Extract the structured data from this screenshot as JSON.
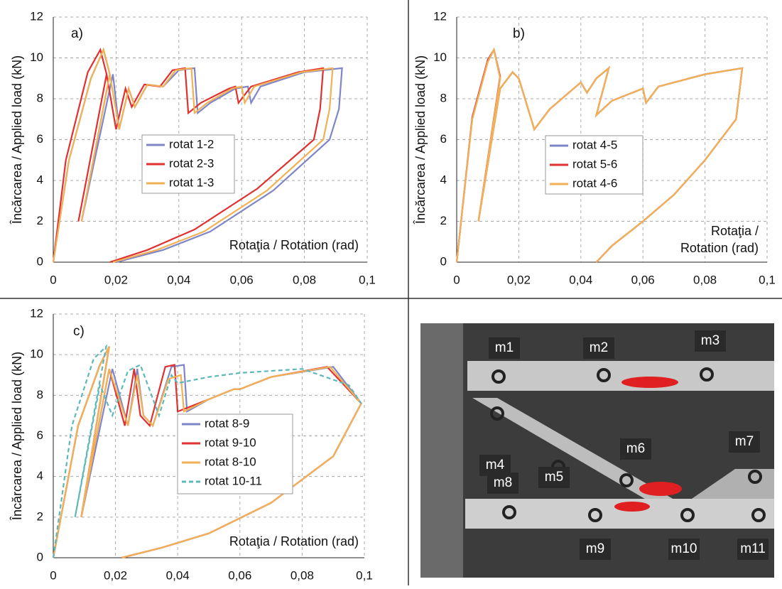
{
  "chart_data": [
    {
      "type": "line",
      "panel_label": "a)",
      "ylabel": "Încărcarea / Applied load (kN)",
      "xlabel": [
        "Rotaţia / Rotation (rad)"
      ],
      "xlim": [
        0,
        0.1
      ],
      "ylim": [
        0,
        12
      ],
      "xticks": [
        0,
        {
          "value": 0.02,
          "label": "0,02"
        },
        {
          "value": 0.04,
          "label": "0,04"
        },
        {
          "value": 0.06,
          "label": "0,06"
        },
        {
          "value": 0.08,
          "label": "0,08"
        },
        {
          "value": 0.1,
          "label": "0,1"
        }
      ],
      "yticks": [
        0,
        2,
        4,
        6,
        8,
        10,
        12
      ],
      "grid": true,
      "series": [
        {
          "name": "rotat 1-2",
          "color": "#7e86c8",
          "x": [
            0,
            0.005,
            0.012,
            0.016,
            0.018,
            0.009,
            0.019,
            0.021,
            0.024,
            0.026,
            0.03,
            0.035,
            0.04,
            0.045,
            0.046,
            0.05,
            0.058,
            0.062,
            0.063,
            0.066,
            0.08,
            0.092,
            0.091,
            0.088,
            0.07,
            0.05,
            0.035,
            0.02
          ],
          "values": [
            0,
            5,
            9,
            10.4,
            9.2,
            2,
            9.2,
            6.5,
            8.5,
            7.6,
            8.7,
            8.6,
            9.4,
            9.5,
            7.3,
            7.8,
            8.5,
            8.6,
            7.8,
            8.6,
            9.3,
            9.5,
            7.5,
            6,
            3.5,
            1.5,
            0.6,
            0
          ]
        },
        {
          "name": "rotat 2-3",
          "color": "#e03030",
          "x": [
            0,
            0.004,
            0.011,
            0.015,
            0.017,
            0.008,
            0.017,
            0.02,
            0.023,
            0.025,
            0.029,
            0.034,
            0.038,
            0.042,
            0.043,
            0.047,
            0.056,
            0.058,
            0.059,
            0.063,
            0.078,
            0.086,
            0.085,
            0.083,
            0.065,
            0.045,
            0.03,
            0.018
          ],
          "values": [
            0,
            5,
            9.3,
            10.4,
            9.2,
            2,
            9.2,
            6.5,
            8.5,
            7.6,
            8.7,
            8.6,
            9.4,
            9.5,
            7.3,
            7.8,
            8.5,
            8.6,
            7.8,
            8.6,
            9.3,
            9.5,
            7.5,
            6,
            3.6,
            1.6,
            0.6,
            0
          ]
        },
        {
          "name": "rotat 1-3",
          "color": "#f2b154",
          "x": [
            0,
            0.005,
            0.012,
            0.016,
            0.018,
            0.009,
            0.018,
            0.021,
            0.024,
            0.026,
            0.03,
            0.035,
            0.039,
            0.044,
            0.045,
            0.049,
            0.057,
            0.06,
            0.061,
            0.064,
            0.079,
            0.089,
            0.088,
            0.086,
            0.068,
            0.048,
            0.033,
            0.019
          ],
          "values": [
            0,
            5,
            9,
            10.4,
            9.2,
            2,
            9.2,
            6.5,
            8.5,
            7.6,
            8.7,
            8.6,
            9.4,
            9.5,
            7.3,
            7.8,
            8.5,
            8.6,
            7.8,
            8.6,
            9.3,
            9.5,
            7.5,
            6,
            3.5,
            1.5,
            0.6,
            0
          ]
        }
      ]
    },
    {
      "type": "line",
      "panel_label": "b)",
      "ylabel": "Încărcarea / Applied load (kN)",
      "xlabel": [
        "Rotaţia /",
        "Rotation (rad)"
      ],
      "xlim": [
        0,
        0.1
      ],
      "ylim": [
        0,
        12
      ],
      "xticks": [
        0,
        {
          "value": 0.02,
          "label": "0,02"
        },
        {
          "value": 0.04,
          "label": "0,04"
        },
        {
          "value": 0.06,
          "label": "0,06"
        },
        {
          "value": 0.08,
          "label": "0,08"
        },
        {
          "value": 0.1,
          "label": "0,1"
        }
      ],
      "yticks": [
        0,
        2,
        4,
        6,
        8,
        10,
        12
      ],
      "grid": true,
      "series": [
        {
          "name": "rotat 4-5",
          "color": "#7e86c8",
          "x": [
            0,
            0.005,
            0.01,
            0.012,
            0.014,
            0.007,
            0.014,
            0.018,
            0.02,
            0.025,
            0.03,
            0.04,
            0.042,
            0.045,
            0.049,
            0.045,
            0.05,
            0.06,
            0.061,
            0.065,
            0.08,
            0.092,
            0.09,
            0.08,
            0.07,
            0.06,
            0.05,
            0.045
          ],
          "values": [
            0,
            7,
            9.8,
            10.4,
            9,
            2,
            8.5,
            9.3,
            9,
            6.5,
            7.5,
            8.8,
            8.3,
            9,
            9.5,
            7.2,
            7.9,
            8.5,
            7.8,
            8.6,
            9.2,
            9.5,
            7,
            5,
            3.3,
            2,
            0.8,
            0
          ]
        },
        {
          "name": "rotat 5-6",
          "color": "#e03030",
          "x": [
            0,
            0.005,
            0.01,
            0.012,
            0.014,
            0.007,
            0.014,
            0.018,
            0.02,
            0.025,
            0.03,
            0.04,
            0.042,
            0.045,
            0.049,
            0.045,
            0.05,
            0.06,
            0.061,
            0.065,
            0.08,
            0.092,
            0.09,
            0.08,
            0.07,
            0.06,
            0.05,
            0.045
          ],
          "values": [
            0,
            7.1,
            9.9,
            10.4,
            9.1,
            2,
            8.5,
            9.3,
            9,
            6.5,
            7.5,
            8.8,
            8.3,
            9,
            9.5,
            7.2,
            7.9,
            8.5,
            7.8,
            8.6,
            9.2,
            9.5,
            7,
            5,
            3.3,
            2,
            0.8,
            0
          ]
        },
        {
          "name": "rotat 4-6",
          "color": "#f2b154",
          "x": [
            0,
            0.005,
            0.01,
            0.012,
            0.014,
            0.007,
            0.014,
            0.018,
            0.02,
            0.025,
            0.03,
            0.04,
            0.042,
            0.045,
            0.049,
            0.045,
            0.05,
            0.06,
            0.061,
            0.065,
            0.08,
            0.092,
            0.09,
            0.08,
            0.07,
            0.06,
            0.05,
            0.045
          ],
          "values": [
            0,
            7,
            9.8,
            10.4,
            9,
            2,
            8.5,
            9.3,
            9,
            6.5,
            7.5,
            8.8,
            8.3,
            9,
            9.5,
            7.2,
            7.9,
            8.5,
            7.8,
            8.6,
            9.2,
            9.5,
            7,
            5,
            3.3,
            2,
            0.8,
            0
          ]
        }
      ]
    },
    {
      "type": "line",
      "panel_label": "c)",
      "ylabel": "Încărcarea / Applied load (kN)",
      "xlabel": [
        "Rotaţia / Rotation (rad)"
      ],
      "xlim": [
        0,
        0.1
      ],
      "ylim": [
        0,
        12
      ],
      "xticks": [
        0,
        {
          "value": 0.02,
          "label": "0,02"
        },
        {
          "value": 0.04,
          "label": "0,04"
        },
        {
          "value": 0.06,
          "label": "0,06"
        },
        {
          "value": 0.08,
          "label": "0,08"
        },
        {
          "value": 0.1,
          "label": "0,1"
        }
      ],
      "yticks": [
        0,
        2,
        4,
        6,
        8,
        10,
        12
      ],
      "grid": true,
      "series": [
        {
          "name": "rotat 8-9",
          "color": "#7e86c8",
          "dash": false,
          "x": [
            0,
            0.008,
            0.015,
            0.018,
            0.009,
            0.019,
            0.024,
            0.027,
            0.029,
            0.032,
            0.038,
            0.042,
            0.043,
            0.05,
            0.058,
            0.06,
            0.07,
            0.09,
            0.099,
            0.09,
            0.07,
            0.05,
            0.035,
            0.022
          ],
          "values": [
            0,
            6.5,
            9.5,
            10.4,
            2,
            9.3,
            6.5,
            9.3,
            7,
            6.5,
            9.4,
            9.5,
            7.2,
            7.8,
            8.3,
            8.3,
            8.9,
            9.4,
            7.6,
            5,
            2.7,
            1.2,
            0.5,
            0
          ]
        },
        {
          "name": "rotat 9-10",
          "color": "#e03030",
          "dash": false,
          "x": [
            0,
            0.008,
            0.015,
            0.018,
            0.009,
            0.018,
            0.023,
            0.026,
            0.028,
            0.031,
            0.036,
            0.039,
            0.04,
            0.05,
            0.058,
            0.06,
            0.07,
            0.088,
            0.099,
            0.09,
            0.07,
            0.05,
            0.035,
            0.022
          ],
          "values": [
            0,
            6.5,
            9.5,
            10.4,
            2,
            9.3,
            6.5,
            9.3,
            7,
            6.5,
            9.4,
            9.5,
            7.2,
            7.8,
            8.3,
            8.3,
            8.9,
            9.4,
            7.6,
            5,
            2.7,
            1.2,
            0.5,
            0
          ]
        },
        {
          "name": "rotat 8-10",
          "color": "#f2b154",
          "dash": false,
          "x": [
            0,
            0.008,
            0.015,
            0.018,
            0.009,
            0.018,
            0.024,
            0.027,
            0.029,
            0.032,
            0.037,
            0.041,
            0.042,
            0.05,
            0.058,
            0.06,
            0.07,
            0.089,
            0.099,
            0.09,
            0.07,
            0.05,
            0.035,
            0.022
          ],
          "values": [
            0,
            6.5,
            9.5,
            10.4,
            2,
            9.3,
            6.5,
            9,
            7,
            6.5,
            8.8,
            9,
            7.2,
            7.8,
            8.3,
            8.3,
            8.9,
            9.4,
            7.6,
            5,
            2.7,
            1.2,
            0.5,
            0
          ]
        },
        {
          "name": "rotat 10-11",
          "color": "#5fb8b8",
          "dash": true,
          "x": [
            0,
            0.006,
            0.013,
            0.017,
            0.007,
            0.015,
            0.019,
            0.024,
            0.028,
            0.034,
            0.038,
            0.04,
            0.05,
            0.06,
            0.08,
            0.095,
            0.099
          ],
          "values": [
            0,
            6.5,
            9.8,
            10.4,
            2,
            8.5,
            7,
            9.2,
            9.5,
            7,
            9,
            8.6,
            8.9,
            9.1,
            9.3,
            8.5,
            7.6
          ]
        }
      ]
    }
  ],
  "image": {
    "labels": [
      "m1",
      "m2",
      "m3",
      "m4",
      "m5",
      "m6",
      "m7",
      "m8",
      "m9",
      "m10",
      "m11"
    ]
  }
}
